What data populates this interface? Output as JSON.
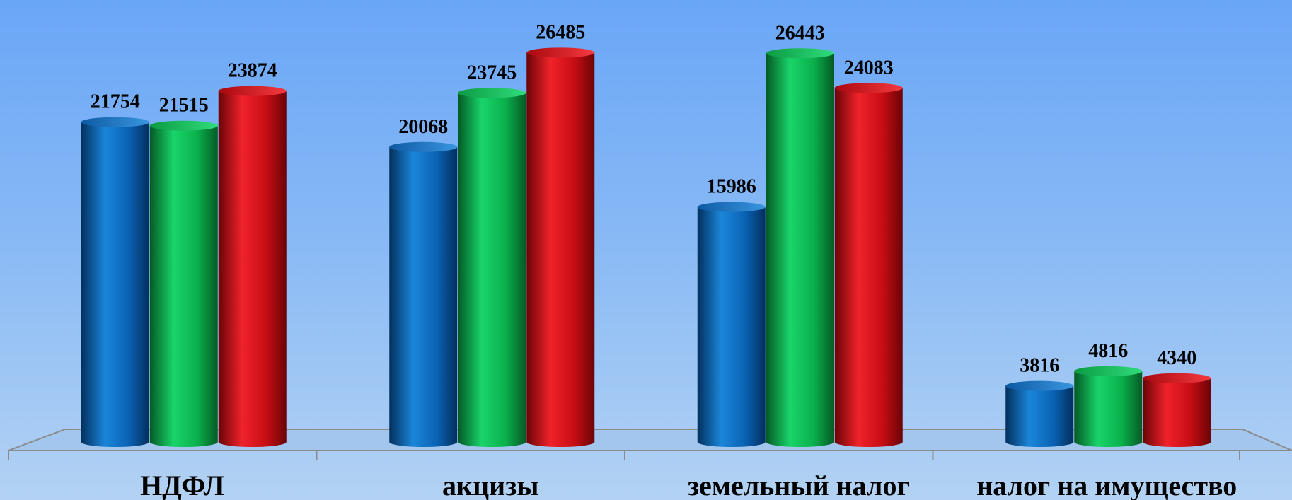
{
  "chart_data": {
    "type": "bar",
    "categories": [
      "НДФЛ",
      "акцизы",
      "земельный налог",
      "налог на имущество"
    ],
    "series": [
      {
        "color": "#0a6ac0",
        "values": [
          21754,
          20068,
          15986,
          3816
        ]
      },
      {
        "color": "#0fb64f",
        "values": [
          21515,
          23745,
          26443,
          4816
        ]
      },
      {
        "color": "#d10f16",
        "values": [
          23874,
          26485,
          24083,
          4340
        ]
      }
    ],
    "ylim": [
      0,
      27000
    ],
    "grid": false,
    "legend": "none",
    "style": "3d-cylinder"
  }
}
